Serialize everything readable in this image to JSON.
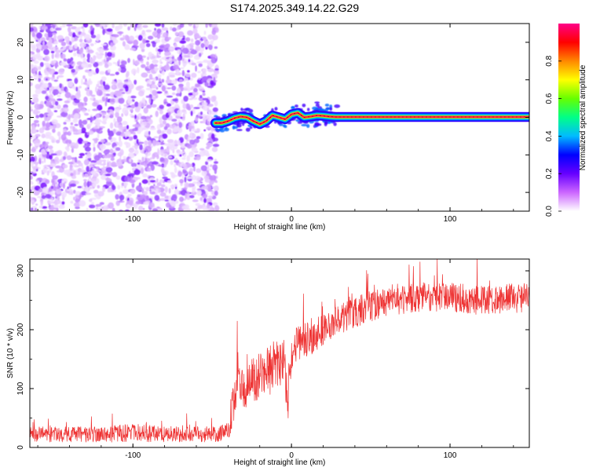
{
  "title": "S174.2025.349.14.22.G29",
  "chart_data": [
    {
      "type": "heatmap",
      "xlabel": "Height of straight line (km)",
      "ylabel": "Frequency (Hz)",
      "xlim": [
        -165,
        150
      ],
      "ylim": [
        -25,
        25
      ],
      "x_ticks": [
        -100,
        0,
        100
      ],
      "y_ticks": [
        -20,
        -10,
        0,
        10,
        20
      ],
      "noise_region": [
        -165,
        -48
      ],
      "signal_track": {
        "x": [
          -48,
          -44,
          -40,
          -36,
          -32,
          -28,
          -24,
          -20,
          -16,
          -12,
          -8,
          -4,
          0,
          4,
          8,
          12,
          16,
          20,
          24,
          28,
          150
        ],
        "y": [
          -1.5,
          -1.5,
          -1.0,
          -0.2,
          0.2,
          0.0,
          -1.0,
          -1.8,
          -1.0,
          0.5,
          0.0,
          -0.5,
          0.8,
          1.2,
          0.0,
          0.2,
          0.5,
          0.4,
          0.2,
          0.1,
          0.1
        ]
      },
      "colorbar": {
        "label": "Normalized spectral amplitude",
        "range": [
          0,
          1
        ],
        "ticks": [
          0.0,
          0.2,
          0.4,
          0.6,
          0.8
        ],
        "tick_labels": [
          "0.0",
          "0.2",
          "0.4",
          "0.6",
          "0.8"
        ],
        "colors": [
          "#ffffff",
          "#cc66ff",
          "#6600ff",
          "#0000ff",
          "#00bbff",
          "#00ff88",
          "#66ff00",
          "#ffff00",
          "#ff8800",
          "#ff0000",
          "#ff0088"
        ]
      }
    },
    {
      "type": "line",
      "xlabel": "Height of straight line (km)",
      "ylabel": "SNR (10 * v/v)",
      "xlim": [
        -165,
        150
      ],
      "ylim": [
        0,
        320
      ],
      "x_ticks": [
        -100,
        0,
        100
      ],
      "y_ticks": [
        0,
        100,
        200,
        300
      ],
      "color": "#ee3333",
      "envelope": {
        "x": [
          -165,
          -120,
          -100,
          -80,
          -60,
          -45,
          -40,
          -36,
          -34,
          -30,
          -25,
          -20,
          -15,
          -10,
          -5,
          -2,
          0,
          5,
          10,
          20,
          30,
          40,
          50,
          60,
          80,
          100,
          120,
          150
        ],
        "mean": [
          22,
          22,
          25,
          23,
          22,
          24,
          28,
          90,
          120,
          95,
          115,
          120,
          125,
          140,
          150,
          90,
          165,
          175,
          185,
          200,
          215,
          230,
          240,
          250,
          255,
          255,
          250,
          255
        ],
        "noise": [
          15,
          15,
          18,
          16,
          15,
          16,
          18,
          60,
          50,
          35,
          40,
          45,
          50,
          50,
          55,
          50,
          40,
          35,
          35,
          30,
          30,
          30,
          30,
          30,
          28,
          28,
          28,
          28
        ]
      }
    }
  ]
}
